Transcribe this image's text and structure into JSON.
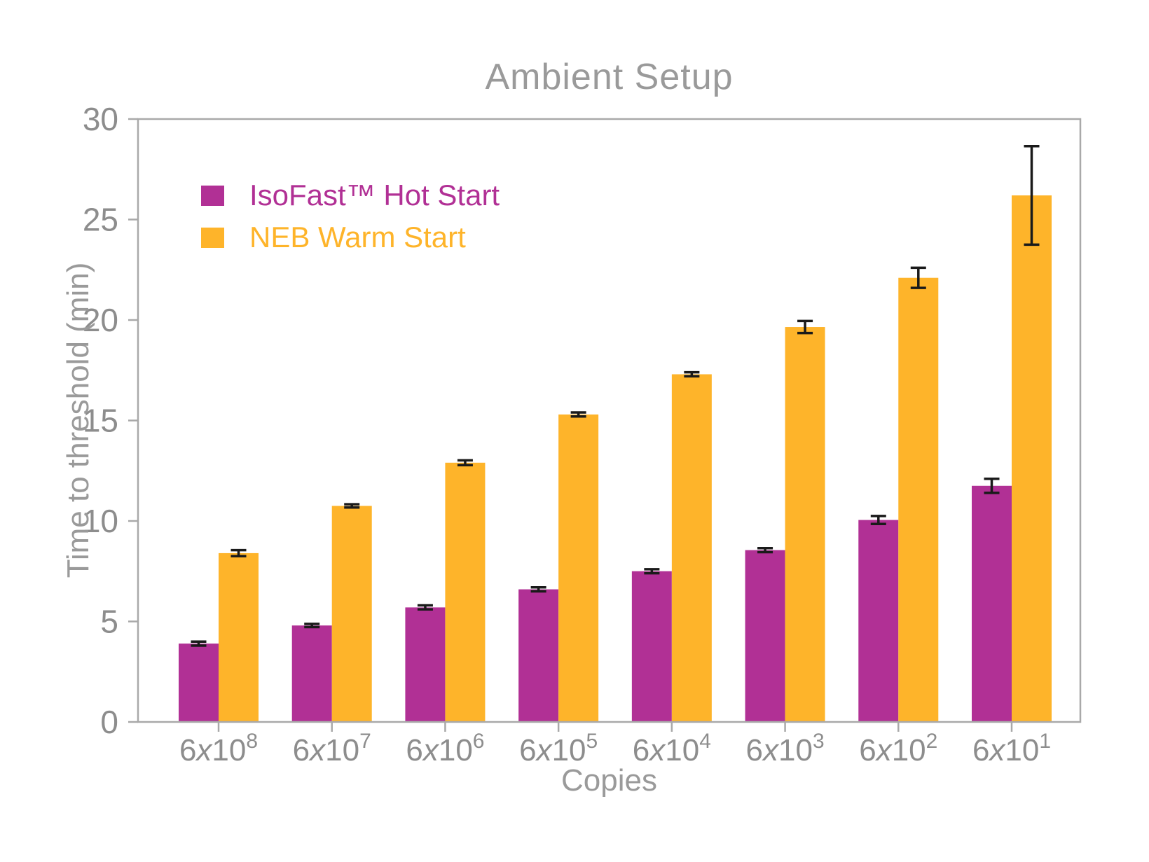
{
  "chart_data": {
    "type": "bar",
    "title": "Ambient Setup",
    "xlabel": "Copies",
    "ylabel": "Time to threshold (min)",
    "ylim": [
      0,
      30
    ],
    "yticks": [
      0,
      5,
      10,
      15,
      20,
      25,
      30
    ],
    "grid": false,
    "legend_position": "upper left",
    "categories": [
      "6x10^8",
      "6x10^7",
      "6x10^6",
      "6x10^5",
      "6x10^4",
      "6x10^3",
      "6x10^2",
      "6x10^1"
    ],
    "categories_parts": [
      {
        "mantissa": "6",
        "base": "10",
        "exponent": "8"
      },
      {
        "mantissa": "6",
        "base": "10",
        "exponent": "7"
      },
      {
        "mantissa": "6",
        "base": "10",
        "exponent": "6"
      },
      {
        "mantissa": "6",
        "base": "10",
        "exponent": "5"
      },
      {
        "mantissa": "6",
        "base": "10",
        "exponent": "4"
      },
      {
        "mantissa": "6",
        "base": "10",
        "exponent": "3"
      },
      {
        "mantissa": "6",
        "base": "10",
        "exponent": "2"
      },
      {
        "mantissa": "6",
        "base": "10",
        "exponent": "1"
      }
    ],
    "series": [
      {
        "name": "IsoFast™ Hot Start",
        "color": "#b13095",
        "values": [
          3.9,
          4.8,
          5.7,
          6.6,
          7.5,
          8.55,
          10.05,
          11.75
        ],
        "errors": [
          0.1,
          0.08,
          0.1,
          0.1,
          0.1,
          0.1,
          0.2,
          0.35
        ]
      },
      {
        "name": "NEB Warm Start",
        "color": "#feb42a",
        "values": [
          8.4,
          10.75,
          12.9,
          15.3,
          17.3,
          19.65,
          22.1,
          26.2
        ],
        "errors": [
          0.15,
          0.08,
          0.12,
          0.1,
          0.1,
          0.3,
          0.5,
          2.45
        ]
      }
    ],
    "colors": {
      "axis": "#a9a9a9",
      "tick_label": "#8d8d8d",
      "title": "#9a9a9a",
      "axis_label": "#9a9a9a",
      "error_bar": "#1a1a1a",
      "background": "#ffffff"
    }
  }
}
